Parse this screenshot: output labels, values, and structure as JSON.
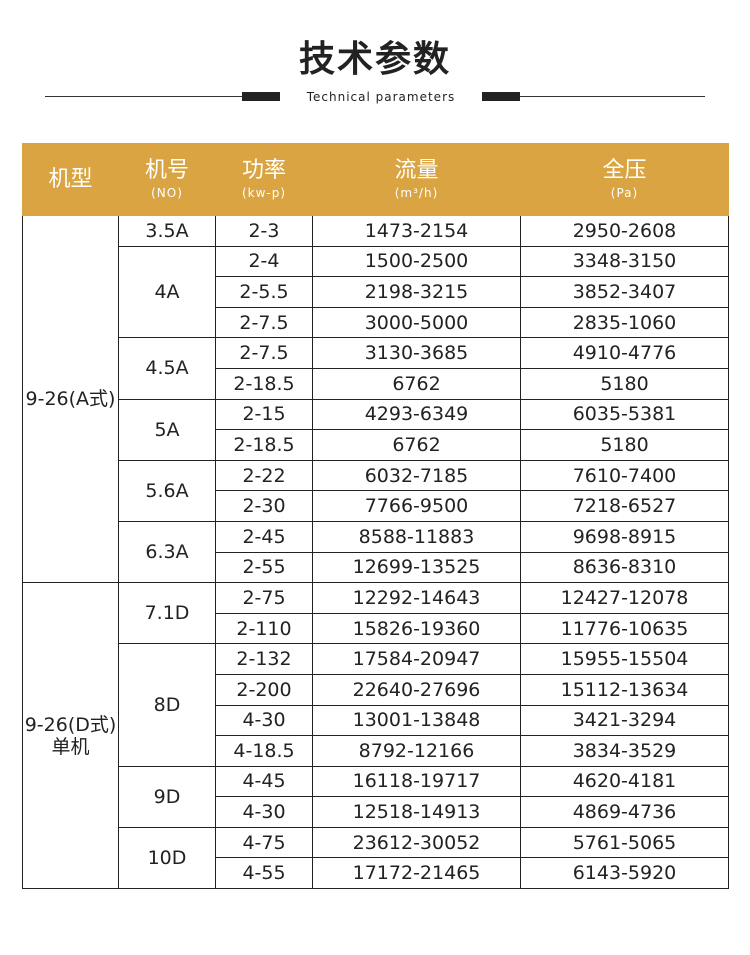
{
  "header": {
    "title": "技术参数",
    "subtitle": "Technical parameters"
  },
  "table": {
    "columns": [
      {
        "label": "机型"
      },
      {
        "label": "机号",
        "unit": "(NO)"
      },
      {
        "label": "功率",
        "unit": "(kw-p)"
      },
      {
        "label": "流量",
        "unit": "(m³/h)"
      },
      {
        "label": "全压",
        "unit": "(Pa)"
      }
    ],
    "groups": [
      {
        "model": "9-26(A式)",
        "machines": [
          {
            "no": "3.5A",
            "rows": [
              [
                "2-3",
                "1473-2154",
                "2950-2608"
              ]
            ]
          },
          {
            "no": "4A",
            "rows": [
              [
                "2-4",
                "1500-2500",
                "3348-3150"
              ],
              [
                "2-5.5",
                "2198-3215",
                "3852-3407"
              ],
              [
                "2-7.5",
                "3000-5000",
                "2835-1060"
              ]
            ]
          },
          {
            "no": "4.5A",
            "rows": [
              [
                "2-7.5",
                "3130-3685",
                "4910-4776"
              ],
              [
                "2-18.5",
                "6762",
                "5180"
              ]
            ]
          },
          {
            "no": "5A",
            "rows": [
              [
                "2-15",
                "4293-6349",
                "6035-5381"
              ],
              [
                "2-18.5",
                "6762",
                "5180"
              ]
            ]
          },
          {
            "no": "5.6A",
            "rows": [
              [
                "2-22",
                "6032-7185",
                "7610-7400"
              ],
              [
                "2-30",
                "7766-9500",
                "7218-6527"
              ]
            ]
          },
          {
            "no": "6.3A",
            "rows": [
              [
                "2-45",
                "8588-11883",
                "9698-8915"
              ],
              [
                "2-55",
                "12699-13525",
                "8636-8310"
              ]
            ]
          }
        ]
      },
      {
        "model": "9-26(D式)单机",
        "machines": [
          {
            "no": "7.1D",
            "rows": [
              [
                "2-75",
                "12292-14643",
                "12427-12078"
              ],
              [
                "2-110",
                "15826-19360",
                "11776-10635"
              ]
            ]
          },
          {
            "no": "8D",
            "rows": [
              [
                "2-132",
                "17584-20947",
                "15955-15504"
              ],
              [
                "2-200",
                "22640-27696",
                "15112-13634"
              ],
              [
                "4-30",
                "13001-13848",
                "3421-3294"
              ],
              [
                "4-18.5",
                "8792-12166",
                "3834-3529"
              ]
            ]
          },
          {
            "no": "9D",
            "rows": [
              [
                "4-45",
                "16118-19717",
                "4620-4181"
              ],
              [
                "4-30",
                "12518-14913",
                "4869-4736"
              ]
            ]
          },
          {
            "no": "10D",
            "rows": [
              [
                "4-75",
                "23612-30052",
                "5761-5065"
              ],
              [
                "4-55",
                "17172-21465",
                "6143-5920"
              ]
            ]
          }
        ]
      }
    ]
  }
}
